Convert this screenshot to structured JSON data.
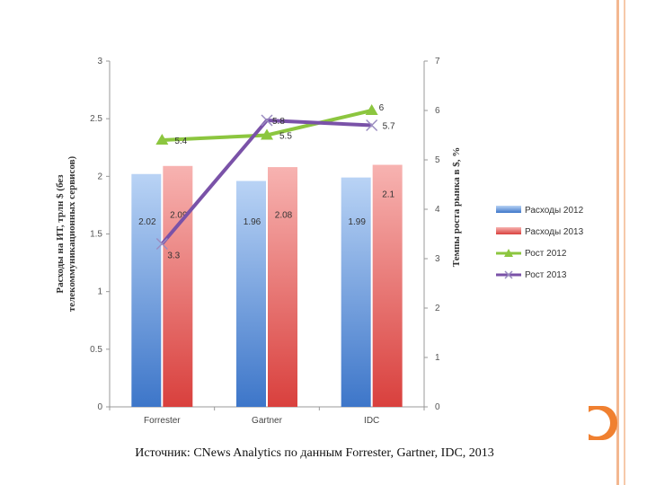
{
  "caption": "Источник: CNews Analytics по данным Forrester, Gartner, IDC, 2013",
  "chart_data": {
    "type": "bar",
    "categories": [
      "Forrester",
      "Gartner",
      "IDC"
    ],
    "bar_series": [
      {
        "name": "Расходы 2012",
        "values": [
          2.02,
          1.96,
          1.99
        ],
        "color": "#5b8fd8"
      },
      {
        "name": "Расходы 2013",
        "values": [
          2.09,
          2.08,
          2.1
        ],
        "color": "#e8504e"
      }
    ],
    "line_series": [
      {
        "name": "Рост 2012",
        "values": [
          5.4,
          5.5,
          6
        ],
        "color": "#8cc63f",
        "marker": "triangle"
      },
      {
        "name": "Рост 2013",
        "values": [
          3.3,
          5.8,
          5.7
        ],
        "color": "#7a52a8",
        "marker": "x"
      }
    ],
    "bar_labels": [
      [
        "2.02",
        "1.96",
        "1.99"
      ],
      [
        "2.09",
        "2.08",
        "2.1"
      ]
    ],
    "line_labels": [
      [
        "5.4",
        "5.5",
        "6"
      ],
      [
        "3.3",
        "5.8",
        "5.7"
      ]
    ],
    "ylabel": "Расходы на ИТ, трлн $ (без телекоммуникационных сервисов)",
    "ylabel_lines": [
      "Расходы на ИТ, трлн $ (без",
      "телекоммуникационных сервисов)"
    ],
    "y2label": "Темпы роста рынка в $, %",
    "ylim": [
      0,
      3
    ],
    "y2lim": [
      0,
      7
    ],
    "yticks": [
      "0",
      "0.5",
      "1",
      "1.5",
      "2",
      "2.5",
      "3"
    ],
    "y2ticks": [
      "0",
      "1",
      "2",
      "3",
      "4",
      "5",
      "6",
      "7"
    ],
    "grid": false,
    "legend_position": "right"
  }
}
